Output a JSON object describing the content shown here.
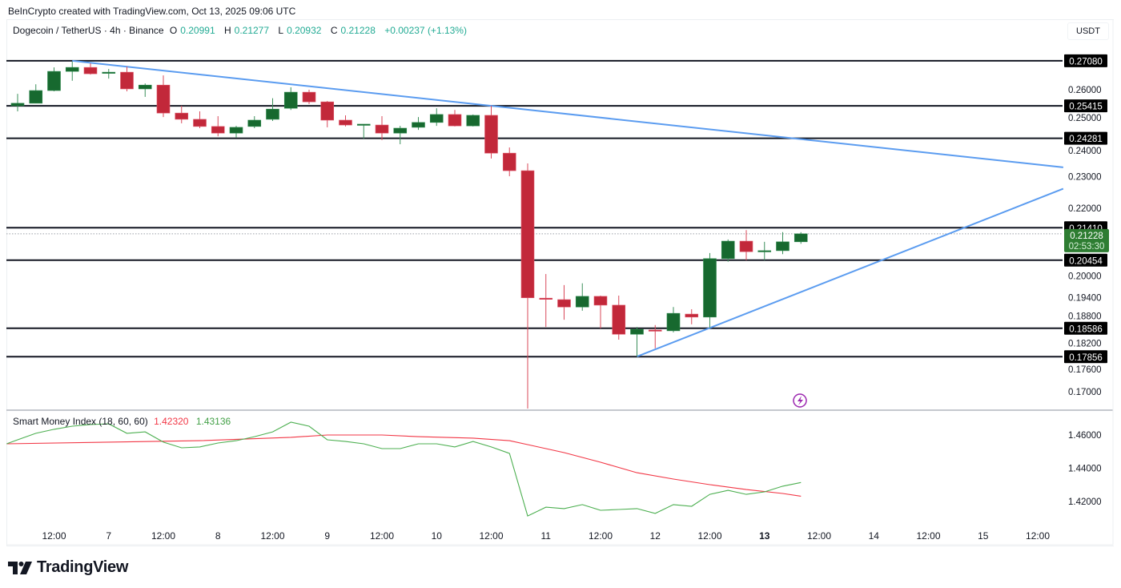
{
  "header": {
    "credit": "BeInCrypto created with TradingView.com, Oct 13, 2025 09:06 UTC",
    "symbol": "Dogecoin / TetherUS · 4h · Binance",
    "o_label": "O",
    "o": "0.20991",
    "h_label": "H",
    "h": "0.21277",
    "l_label": "L",
    "l": "0.20932",
    "c_label": "C",
    "c": "0.21228",
    "change": "+0.00237 (+1.13%)",
    "currency_button": "USDT"
  },
  "brand": {
    "logo_text": "TradingView"
  },
  "colors": {
    "up": "#17692f",
    "down": "#c2283a",
    "trendline": "#5b9cf0",
    "smi_signal": "#f23645",
    "smi_line": "#4caf50",
    "countdown_bg": "#2e7d32",
    "event_icon": "#9c27b0"
  },
  "chart_data": [
    {
      "type": "candlestick",
      "title": "Dogecoin / TetherUS · 4h · Binance",
      "y_scale": "log",
      "ylim": [
        0.166,
        0.272
      ],
      "grid": false,
      "x_tick_labels": [
        {
          "bar": 2,
          "label": "12:00"
        },
        {
          "bar": 5,
          "label": "7"
        },
        {
          "bar": 8,
          "label": "12:00"
        },
        {
          "bar": 11,
          "label": "8"
        },
        {
          "bar": 14,
          "label": "12:00"
        },
        {
          "bar": 17,
          "label": "9"
        },
        {
          "bar": 20,
          "label": "12:00"
        },
        {
          "bar": 23,
          "label": "10"
        },
        {
          "bar": 26,
          "label": "12:00"
        },
        {
          "bar": 29,
          "label": "11"
        },
        {
          "bar": 32,
          "label": "12:00"
        },
        {
          "bar": 35,
          "label": "12"
        },
        {
          "bar": 38,
          "label": "12:00"
        },
        {
          "bar": 41,
          "label": "13",
          "bold": true
        },
        {
          "bar": 44,
          "label": "12:00"
        },
        {
          "bar": 47,
          "label": "14"
        },
        {
          "bar": 50,
          "label": "12:00"
        },
        {
          "bar": 53,
          "label": "15"
        },
        {
          "bar": 56,
          "label": "12:00"
        }
      ],
      "y_tick_labels": [
        "0.26000",
        "0.25000",
        "0.24000",
        "0.23000",
        "0.22000",
        "0.20000",
        "0.19400",
        "0.18800",
        "0.18200",
        "0.17600",
        "0.17000"
      ],
      "ohlc": [
        [
          0.2542,
          0.2585,
          0.2522,
          0.2551
        ],
        [
          0.2551,
          0.262,
          0.2551,
          0.2597
        ],
        [
          0.2597,
          0.2683,
          0.2594,
          0.2668
        ],
        [
          0.2668,
          0.2705,
          0.2633,
          0.2683
        ],
        [
          0.2683,
          0.2699,
          0.2656,
          0.2659
        ],
        [
          0.2662,
          0.2677,
          0.2641,
          0.2665
        ],
        [
          0.2665,
          0.2686,
          0.2594,
          0.2603
        ],
        [
          0.2603,
          0.2623,
          0.2574,
          0.2617
        ],
        [
          0.2617,
          0.2653,
          0.2502,
          0.2516
        ],
        [
          0.2516,
          0.2542,
          0.248,
          0.2494
        ],
        [
          0.2494,
          0.2522,
          0.2463,
          0.2469
        ],
        [
          0.2469,
          0.2505,
          0.2435,
          0.2446
        ],
        [
          0.2446,
          0.2471,
          0.243,
          0.2466
        ],
        [
          0.2469,
          0.2505,
          0.2463,
          0.2491
        ],
        [
          0.2494,
          0.2569,
          0.2488,
          0.253
        ],
        [
          0.2533,
          0.2609,
          0.2527,
          0.2591
        ],
        [
          0.2591,
          0.26,
          0.2548,
          0.2556
        ],
        [
          0.2556,
          0.2559,
          0.2466,
          0.2491
        ],
        [
          0.2491,
          0.2508,
          0.2469,
          0.2474
        ],
        [
          0.2476,
          0.2477,
          0.2427,
          0.2477
        ],
        [
          0.2474,
          0.2505,
          0.2422,
          0.2446
        ],
        [
          0.2446,
          0.2471,
          0.2408,
          0.2463
        ],
        [
          0.2466,
          0.2502,
          0.2457,
          0.2483
        ],
        [
          0.2483,
          0.2533,
          0.2471,
          0.2511
        ],
        [
          0.2511,
          0.2527,
          0.2469,
          0.2471
        ],
        [
          0.2471,
          0.2511,
          0.2469,
          0.2508
        ],
        [
          0.2508,
          0.2542,
          0.236,
          0.2378
        ],
        [
          0.2378,
          0.2397,
          0.2302,
          0.232
        ],
        [
          0.232,
          0.2344,
          0.166,
          0.194
        ],
        [
          0.1939,
          0.2006,
          0.1862,
          0.1938
        ],
        [
          0.1935,
          0.1975,
          0.1881,
          0.1915
        ],
        [
          0.1915,
          0.198,
          0.1905,
          0.1944
        ],
        [
          0.1944,
          0.1946,
          0.1858,
          0.192
        ],
        [
          0.192,
          0.1946,
          0.1829,
          0.1843
        ],
        [
          0.1843,
          0.1862,
          0.1786,
          0.1856
        ],
        [
          0.1854,
          0.1867,
          0.1807,
          0.1852
        ],
        [
          0.1852,
          0.1915,
          0.1848,
          0.1898
        ],
        [
          0.1896,
          0.1909,
          0.1869,
          0.1888
        ],
        [
          0.1888,
          0.2066,
          0.186,
          0.205
        ],
        [
          0.205,
          0.2106,
          0.2041,
          0.2101
        ],
        [
          0.2101,
          0.2134,
          0.2045,
          0.207
        ],
        [
          0.2071,
          0.2099,
          0.2045,
          0.2073
        ],
        [
          0.2073,
          0.2128,
          0.2063,
          0.2099
        ],
        [
          0.20991,
          0.21277,
          0.20932,
          0.21228
        ]
      ],
      "horizontal_levels": [
        "0.27080",
        "0.25415",
        "0.24281",
        "0.21410",
        "0.20454",
        "0.18586",
        "0.17856"
      ],
      "last_price": {
        "value": "0.21228",
        "countdown": "02:53:30"
      },
      "trendlines": [
        {
          "from": [
            3,
            0.2708
          ],
          "to": [
            57.4,
            0.2331
          ]
        },
        {
          "from": [
            34,
            0.1786
          ],
          "to": [
            57.4,
            0.2262
          ]
        }
      ]
    },
    {
      "type": "line",
      "title": "Smart Money Index (18, 60, 60)",
      "ylim": [
        1.405,
        1.474
      ],
      "y_tick_labels": [
        "1.46000",
        "1.44000",
        "1.42000"
      ],
      "series": [
        {
          "name": "1.42320",
          "points": [
            [
              -0.6,
              1.4547
            ],
            [
              5,
              1.4557
            ],
            [
              10,
              1.4566
            ],
            [
              15,
              1.4586
            ],
            [
              17,
              1.46
            ],
            [
              20,
              1.46
            ],
            [
              22,
              1.459
            ],
            [
              25,
              1.4581
            ],
            [
              27,
              1.4566
            ],
            [
              28,
              1.4542
            ],
            [
              30,
              1.4494
            ],
            [
              32,
              1.4436
            ],
            [
              34,
              1.4373
            ],
            [
              36,
              1.4335
            ],
            [
              38,
              1.4301
            ],
            [
              40,
              1.4272
            ],
            [
              42,
              1.4248
            ],
            [
              43,
              1.4232
            ]
          ]
        },
        {
          "name": "1.43136",
          "points": [
            [
              -0.6,
              1.4547
            ],
            [
              0,
              1.4571
            ],
            [
              1,
              1.461
            ],
            [
              2,
              1.4634
            ],
            [
              3,
              1.4653
            ],
            [
              4,
              1.4663
            ],
            [
              5,
              1.4667
            ],
            [
              6,
              1.461
            ],
            [
              7,
              1.4619
            ],
            [
              8,
              1.4557
            ],
            [
              9,
              1.4523
            ],
            [
              10,
              1.4528
            ],
            [
              11,
              1.4552
            ],
            [
              12,
              1.4566
            ],
            [
              13,
              1.459
            ],
            [
              14,
              1.4619
            ],
            [
              15,
              1.4677
            ],
            [
              16,
              1.4653
            ],
            [
              17,
              1.4571
            ],
            [
              18,
              1.4561
            ],
            [
              19,
              1.4547
            ],
            [
              20,
              1.4518
            ],
            [
              21,
              1.4518
            ],
            [
              22,
              1.4547
            ],
            [
              23,
              1.4547
            ],
            [
              24,
              1.4528
            ],
            [
              25,
              1.4561
            ],
            [
              26,
              1.4528
            ],
            [
              27,
              1.4489
            ],
            [
              28,
              1.4113
            ],
            [
              29,
              1.4166
            ],
            [
              30,
              1.4157
            ],
            [
              31,
              1.4181
            ],
            [
              32,
              1.4147
            ],
            [
              33,
              1.4152
            ],
            [
              34,
              1.4157
            ],
            [
              35,
              1.4128
            ],
            [
              36,
              1.4181
            ],
            [
              37,
              1.4171
            ],
            [
              38,
              1.4243
            ],
            [
              39,
              1.4267
            ],
            [
              40,
              1.4243
            ],
            [
              41,
              1.4258
            ],
            [
              42,
              1.4292
            ],
            [
              43,
              1.4314
            ]
          ]
        }
      ]
    }
  ]
}
